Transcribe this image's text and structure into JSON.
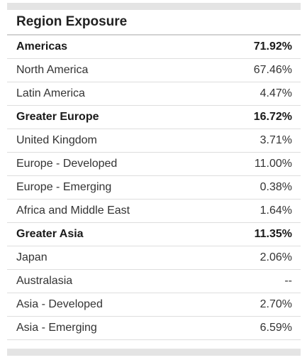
{
  "panel": {
    "title": "Region Exposure",
    "rows": [
      {
        "label": "Americas",
        "value": "71.92%",
        "group": true
      },
      {
        "label": "North America",
        "value": "67.46%",
        "group": false
      },
      {
        "label": "Latin America",
        "value": "4.47%",
        "group": false
      },
      {
        "label": "Greater Europe",
        "value": "16.72%",
        "group": true
      },
      {
        "label": "United Kingdom",
        "value": "3.71%",
        "group": false
      },
      {
        "label": "Europe - Developed",
        "value": "11.00%",
        "group": false
      },
      {
        "label": "Europe - Emerging",
        "value": "0.38%",
        "group": false
      },
      {
        "label": "Africa and Middle East",
        "value": "1.64%",
        "group": false
      },
      {
        "label": "Greater Asia",
        "value": "11.35%",
        "group": true
      },
      {
        "label": "Japan",
        "value": "2.06%",
        "group": false
      },
      {
        "label": "Australasia",
        "value": "--",
        "group": false
      },
      {
        "label": "Asia - Developed",
        "value": "2.70%",
        "group": false
      },
      {
        "label": "Asia - Emerging",
        "value": "6.59%",
        "group": false
      }
    ]
  }
}
